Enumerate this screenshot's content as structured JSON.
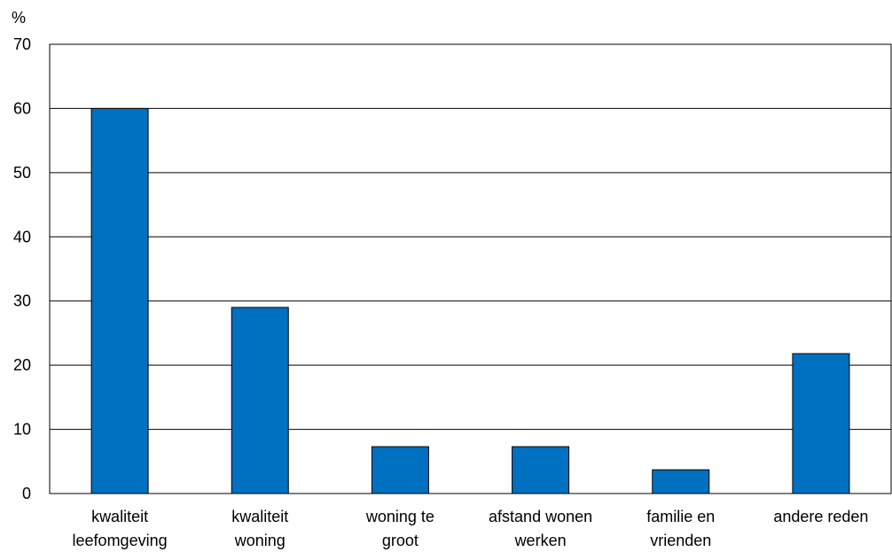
{
  "chart_data": {
    "type": "bar",
    "title": "",
    "xlabel": "",
    "ylabel": "%",
    "ylim": [
      0,
      70
    ],
    "yticks": [
      0,
      10,
      20,
      30,
      40,
      50,
      60,
      70
    ],
    "grid": true,
    "categories": [
      [
        "kwaliteit",
        "leefomgeving"
      ],
      [
        "kwaliteit",
        "woning"
      ],
      [
        "woning te",
        "groot"
      ],
      [
        "afstand wonen",
        "werken"
      ],
      [
        "familie en",
        "vrienden"
      ],
      [
        "andere reden"
      ]
    ],
    "values": [
      60,
      29,
      7.3,
      7.3,
      3.7,
      21.8
    ],
    "colors": {
      "bar": "#0070C0",
      "bar_outline": "#000000",
      "grid": "#000000"
    }
  }
}
